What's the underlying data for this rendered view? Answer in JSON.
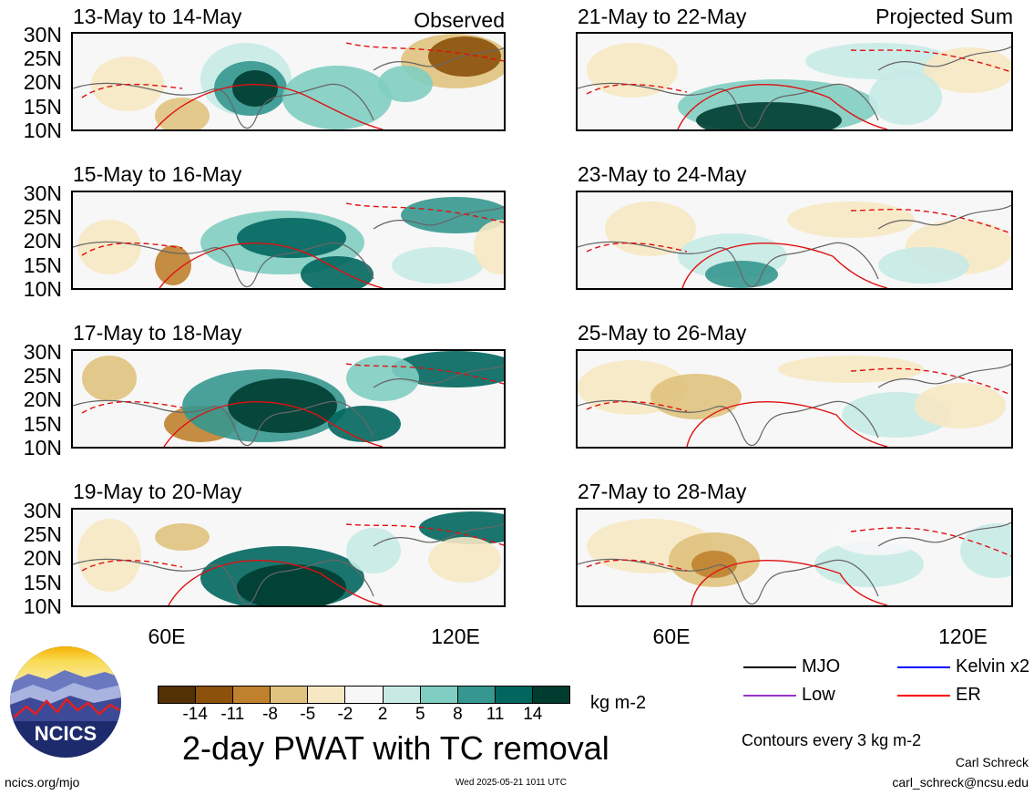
{
  "panels": [
    {
      "title": "13-May to 14-May",
      "tag": "Observed"
    },
    {
      "title": "15-May to 16-May",
      "tag": ""
    },
    {
      "title": "17-May to 18-May",
      "tag": ""
    },
    {
      "title": "19-May to 20-May",
      "tag": ""
    },
    {
      "title": "21-May to 22-May",
      "tag": "Projected Sum"
    },
    {
      "title": "23-May to 24-May",
      "tag": ""
    },
    {
      "title": "25-May to 26-May",
      "tag": ""
    },
    {
      "title": "27-May to 28-May",
      "tag": ""
    }
  ],
  "lat_labels": [
    "30N",
    "25N",
    "20N",
    "15N",
    "10N"
  ],
  "lon_labels": [
    "60E",
    "120E"
  ],
  "colorbar": {
    "labels": [
      "-14",
      "-11",
      "-8",
      "-5",
      "-2",
      "2",
      "5",
      "8",
      "11",
      "14"
    ],
    "colors": [
      "#543005",
      "#8c510a",
      "#bf812d",
      "#dfc27d",
      "#f6e8c3",
      "#f7f7f7",
      "#c7eae5",
      "#80cdc1",
      "#35978f",
      "#01665e",
      "#003c30"
    ],
    "unit": "kg m-2"
  },
  "title": "2-day PWAT with TC removal",
  "legend": {
    "items": [
      {
        "label": "MJO",
        "color": "#000000"
      },
      {
        "label": "Kelvin x2",
        "color": "#0000ff"
      },
      {
        "label": "Low",
        "color": "#9933cc"
      },
      {
        "label": "ER",
        "color": "#ff0000"
      }
    ],
    "contour_note": "Contours every 3 kg m-2"
  },
  "logo_text": "NCICS",
  "footer": {
    "url": "ncics.org/mjo",
    "timestamp": "Wed 2025-05-21 1011 UTC",
    "author": "Carl Schreck",
    "email": "carl_schreck@ncsu.edu"
  }
}
